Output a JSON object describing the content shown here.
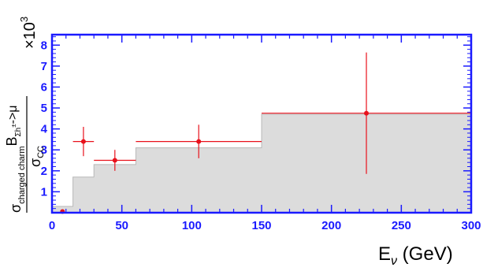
{
  "chart_data": {
    "type": "scatter",
    "xlabel": "E",
    "xlabel_sub": "ν",
    "xlabel_unit": " (GeV)",
    "ylabel_parts": {
      "sigma_num": "σ",
      "num_sub": "charged charm",
      "b": "B",
      "b_sub": "Σh",
      "b_sup": "±",
      "b_tail": "->μ",
      "sigma_den": "σ",
      "den_sub": "CC"
    },
    "y_multiplier": "×10",
    "y_multiplier_exp": "3",
    "xlim": [
      0,
      300
    ],
    "ylim": [
      0,
      8.5
    ],
    "x_ticks": [
      0,
      50,
      100,
      150,
      200,
      250,
      300
    ],
    "y_ticks": [
      1,
      2,
      3,
      4,
      5,
      6,
      7,
      8
    ],
    "histogram": {
      "name": "",
      "fill_color": "#dcdcdc",
      "edges": [
        0,
        15,
        30,
        60,
        150,
        300
      ],
      "values": [
        0.3,
        1.7,
        2.3,
        3.1,
        4.7
      ]
    },
    "series": [
      {
        "name": "",
        "color": "#e8111b",
        "points": [
          {
            "x": 7.5,
            "y": 0.05,
            "xerr": 0,
            "yerr": 0
          },
          {
            "x": 22.5,
            "y": 3.4,
            "xerr": 7.5,
            "yerr": 0.7
          },
          {
            "x": 45,
            "y": 2.5,
            "xerr": 15,
            "yerr": 0.5
          },
          {
            "x": 105,
            "y": 3.4,
            "xerr": 45,
            "yerr": 0.8
          },
          {
            "x": 225,
            "y": 4.75,
            "xerr": 75,
            "yerr": 2.9
          }
        ]
      }
    ],
    "grid": false,
    "frame_color": "#1a1aff"
  }
}
